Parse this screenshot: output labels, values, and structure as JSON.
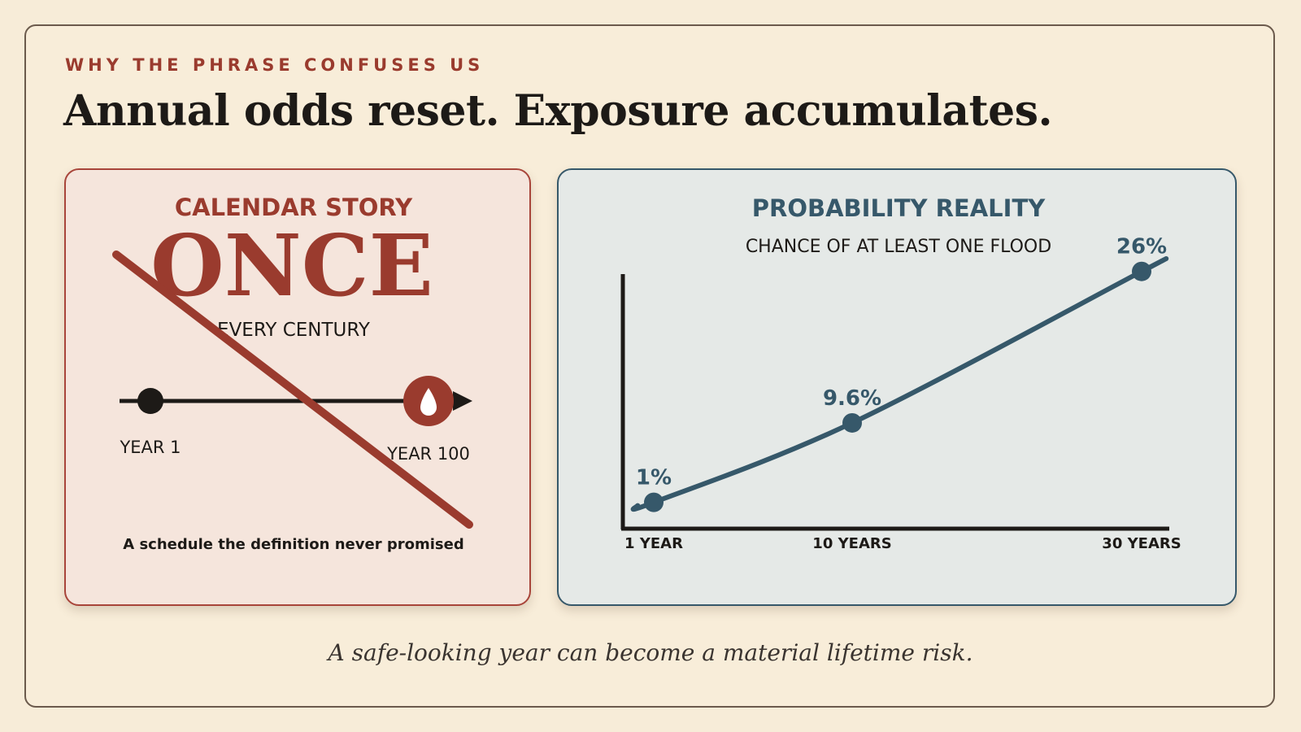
{
  "kicker": "WHY THE PHRASE CONFUSES US",
  "headline": "Annual odds reset. Exposure accumulates.",
  "left_panel": {
    "title": "CALENDAR STORY",
    "big_word": "ONCE",
    "sub_word": "EVERY CENTURY",
    "timeline_start": "YEAR 1",
    "timeline_end": "YEAR 100",
    "caption": "A schedule the definition never promised",
    "icon": "water-drop-icon",
    "accent": "#9a3b2e"
  },
  "right_panel": {
    "title": "PROBABILITY REALITY",
    "subtitle": "CHANCE OF AT LEAST ONE FLOOD",
    "accent": "#36586a"
  },
  "chart_data": {
    "type": "line",
    "title": "CHANCE OF AT LEAST ONE FLOOD",
    "categories": [
      "1 YEAR",
      "10 YEARS",
      "30 YEARS"
    ],
    "x": [
      1,
      10,
      30
    ],
    "values": [
      1,
      9.6,
      26
    ],
    "data_labels": [
      "1%",
      "9.6%",
      "26%"
    ],
    "ylim": [
      0,
      28
    ],
    "grid": false
  },
  "footer": "A safe-looking year can become a material lifetime risk."
}
